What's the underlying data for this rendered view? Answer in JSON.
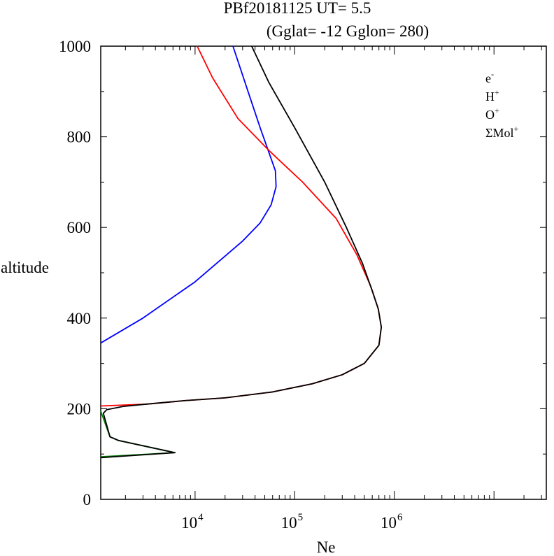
{
  "chart_data": {
    "type": "line",
    "title": "PBf20181125   UT=  5.5",
    "subtitle": "(Gglat= -12   Gglon=  280)",
    "xlabel": "Ne",
    "ylabel": "altitude",
    "xscale": "log",
    "xlim": [
      1130,
      33500000
    ],
    "ylim": [
      0,
      1000
    ],
    "y_ticks": [
      "0",
      "200",
      "400",
      "600",
      "800",
      "1000"
    ],
    "x_ticks": [
      {
        "value": 10000,
        "base": "10",
        "exp": "4"
      },
      {
        "value": 100000,
        "base": "10",
        "exp": "5"
      },
      {
        "value": 1000000,
        "base": "10",
        "exp": "6"
      }
    ],
    "legend_placement": "top-right",
    "series": [
      {
        "name": "e",
        "name_sup": "-",
        "color": "#000000",
        "points": [
          [
            1130,
            92
          ],
          [
            6300,
            103
          ],
          [
            1700,
            130
          ],
          [
            1400,
            138
          ],
          [
            1200,
            190
          ],
          [
            1300,
            198
          ],
          [
            1900,
            205
          ],
          [
            3200,
            210
          ],
          [
            8000,
            218
          ],
          [
            20000,
            224
          ],
          [
            60000,
            237
          ],
          [
            150000,
            255
          ],
          [
            300000,
            275
          ],
          [
            500000,
            300
          ],
          [
            700000,
            340
          ],
          [
            740000,
            380
          ],
          [
            690000,
            420
          ],
          [
            600000,
            460
          ],
          [
            480000,
            520
          ],
          [
            330000,
            600
          ],
          [
            200000,
            700
          ],
          [
            100000,
            820
          ],
          [
            55000,
            920
          ],
          [
            37000,
            1000
          ]
        ]
      },
      {
        "name": "H",
        "name_sup": "+",
        "color": "#0000ff",
        "points": [
          [
            1130,
            345
          ],
          [
            3000,
            400
          ],
          [
            10000,
            480
          ],
          [
            30000,
            570
          ],
          [
            45000,
            610
          ],
          [
            58000,
            650
          ],
          [
            65000,
            690
          ],
          [
            64000,
            725
          ],
          [
            45000,
            820
          ],
          [
            34000,
            900
          ],
          [
            24000,
            1000
          ]
        ]
      },
      {
        "name": "O",
        "name_sup": "+",
        "color": "#ff0000",
        "points": [
          [
            1130,
            206
          ],
          [
            3200,
            210
          ],
          [
            8000,
            218
          ],
          [
            20000,
            224
          ],
          [
            60000,
            237
          ],
          [
            150000,
            255
          ],
          [
            300000,
            275
          ],
          [
            500000,
            300
          ],
          [
            700000,
            340
          ],
          [
            740000,
            380
          ],
          [
            690000,
            420
          ],
          [
            580000,
            470
          ],
          [
            420000,
            540
          ],
          [
            260000,
            620
          ],
          [
            120000,
            700
          ],
          [
            55000,
            770
          ],
          [
            27000,
            840
          ],
          [
            15000,
            930
          ],
          [
            10500,
            1000
          ]
        ]
      },
      {
        "name": "ΣMol",
        "name_sup": "+",
        "color": "#008000",
        "points": [
          [
            1130,
            94
          ],
          [
            6200,
            103
          ],
          [
            1700,
            130
          ],
          [
            1400,
            138
          ],
          [
            1150,
            190
          ],
          [
            1130,
            195
          ]
        ]
      }
    ]
  }
}
